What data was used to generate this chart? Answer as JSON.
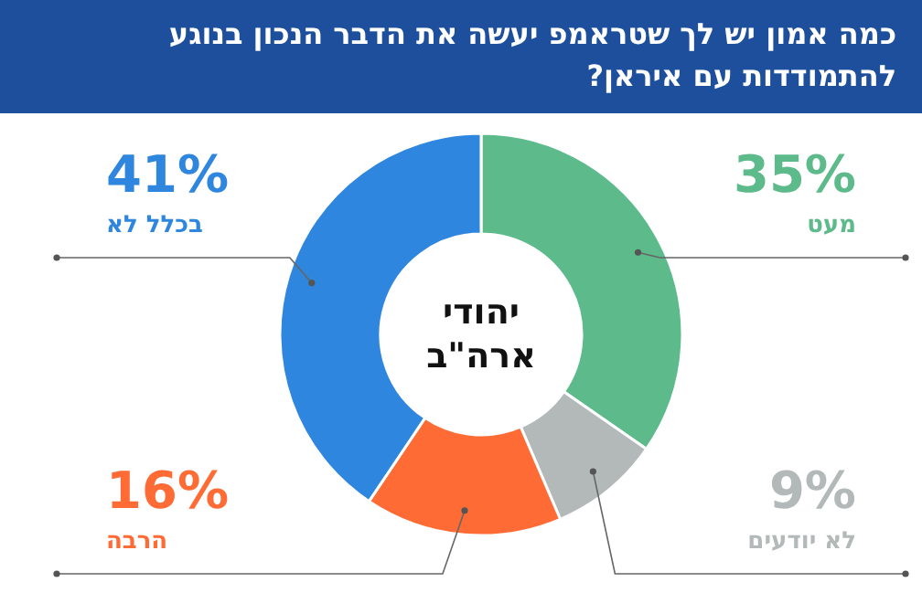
{
  "chart_data": {
    "type": "donut",
    "title": "כמה אמון יש לך שטראמפ יעשה את הדבר הנכון בנוגע להתמודדות עם איראן?",
    "categories": [
      "מעט",
      "לא יודעים",
      "הרבה",
      "בכלל לא"
    ],
    "values": [
      35,
      9,
      16,
      41
    ],
    "value_labels": [
      "35%",
      "9%",
      "16%",
      "41%"
    ],
    "colors": [
      "#5dba8a",
      "#b3b9b9",
      "#ff6b35",
      "#2e86de"
    ],
    "annotations": [
      "יהודי ארה\"ב"
    ]
  }
}
